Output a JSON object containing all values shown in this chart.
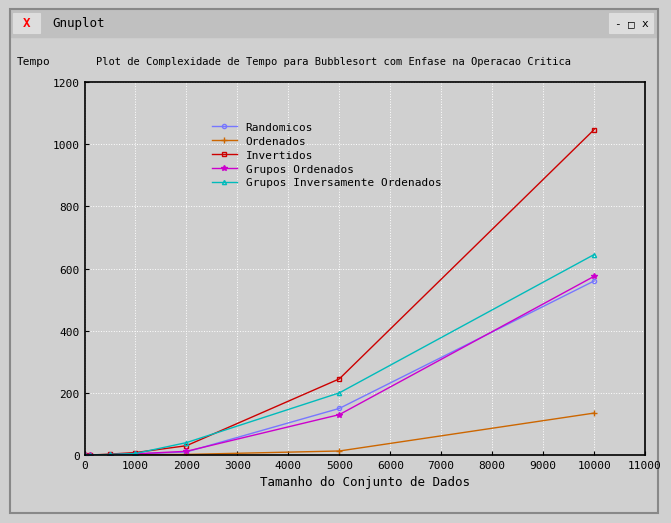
{
  "title": "Plot de Complexidade de Tempo para Bubblesort com Enfase na Operacao Critica",
  "ylabel": "Tempo",
  "xlabel": "Tamanho do Conjunto de Dados",
  "xlim": [
    0,
    11000
  ],
  "ylim": [
    0,
    1200
  ],
  "xticks": [
    0,
    1000,
    2000,
    3000,
    4000,
    5000,
    6000,
    7000,
    8000,
    9000,
    10000,
    11000
  ],
  "yticks": [
    0,
    200,
    400,
    600,
    800,
    1000,
    1200
  ],
  "background_color": "#d0d0d0",
  "plot_bg_color": "#d0d0d0",
  "grid_color": "#ffffff",
  "titlebar_color": "#c0c0c0",
  "series": [
    {
      "label": "Randomicos",
      "color": "#7777ff",
      "marker": "o",
      "markersize": 3,
      "x": [
        0,
        100,
        500,
        1000,
        2000,
        5000,
        10000
      ],
      "y": [
        0,
        0,
        1,
        3,
        10,
        150,
        560
      ]
    },
    {
      "label": "Ordenados",
      "color": "#cc6600",
      "marker": "+",
      "markersize": 5,
      "x": [
        0,
        100,
        500,
        1000,
        2000,
        5000,
        10000
      ],
      "y": [
        0,
        0,
        0,
        1,
        2,
        13,
        135
      ]
    },
    {
      "label": "Invertidos",
      "color": "#cc0000",
      "marker": "s",
      "markersize": 3,
      "x": [
        0,
        100,
        500,
        1000,
        2000,
        5000,
        10000
      ],
      "y": [
        0,
        0,
        3,
        8,
        30,
        245,
        1047
      ]
    },
    {
      "label": "Grupos Ordenados",
      "color": "#cc00cc",
      "marker": "*",
      "markersize": 4,
      "x": [
        0,
        100,
        500,
        1000,
        2000,
        5000,
        10000
      ],
      "y": [
        0,
        0,
        1,
        4,
        12,
        130,
        575
      ]
    },
    {
      "label": "Grupos Inversamente Ordenados",
      "color": "#00bbbb",
      "marker": "^",
      "markersize": 3,
      "x": [
        0,
        100,
        500,
        1000,
        2000,
        5000,
        10000
      ],
      "y": [
        0,
        0,
        2,
        5,
        40,
        200,
        645
      ]
    }
  ],
  "window_title": "Gnuplot",
  "font_family": "monospace"
}
